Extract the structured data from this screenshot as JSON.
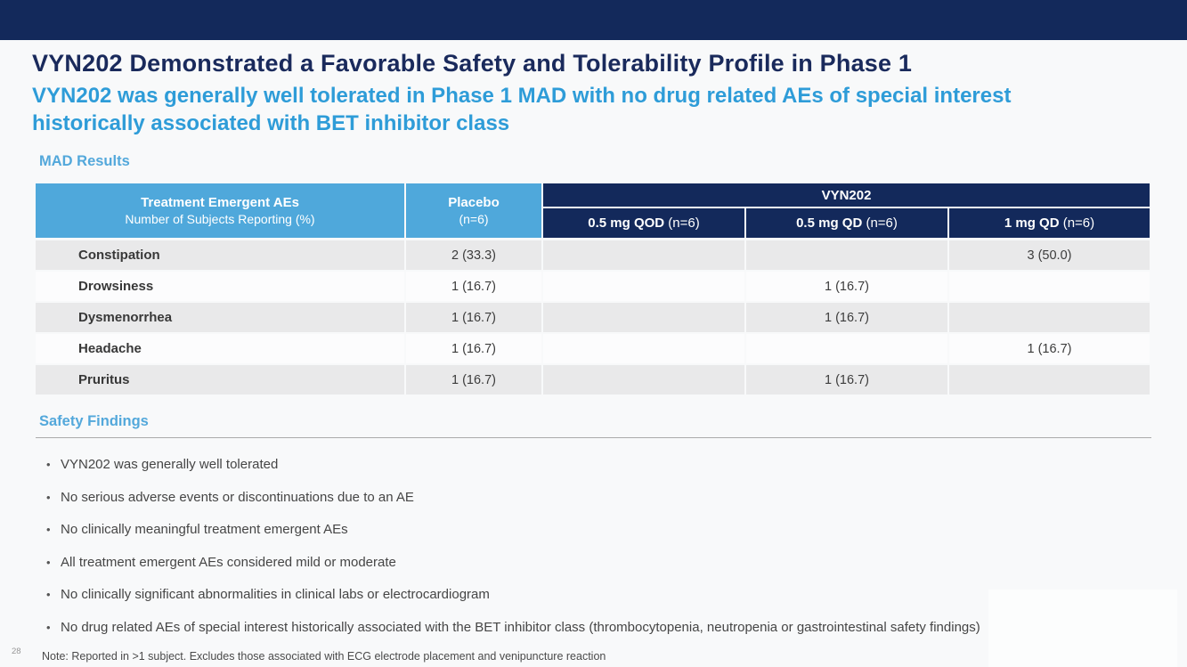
{
  "slide": {
    "title": "VYN202 Demonstrated a Favorable Safety and Tolerability Profile in Phase 1",
    "subtitle": "VYN202 was generally well tolerated in Phase 1 MAD with no drug related AEs of special interest historically associated with BET inhibitor class",
    "page_number": "28",
    "note": "Note: Reported in >1 subject. Excludes those associated with ECG electrode placement and venipuncture reaction"
  },
  "colors": {
    "navy": "#13295b",
    "light_blue": "#4fa8db",
    "title_navy": "#1a2a5c",
    "subtitle_blue": "#2e9cd8",
    "row_gray": "#e9e9ea"
  },
  "mad": {
    "section_label": "MAD Results",
    "table": {
      "header": {
        "col1_line1": "Treatment Emergent AEs",
        "col1_line2": "Number of Subjects Reporting (%)",
        "placebo_label": "Placebo",
        "placebo_n": "(n=6)",
        "group_label": "VYN202",
        "doses": [
          {
            "label": "0.5 mg QOD",
            "n": " (n=6)"
          },
          {
            "label": "0.5 mg QD",
            "n": " (n=6)"
          },
          {
            "label": "1 mg QD",
            "n": " (n=6)"
          }
        ]
      },
      "rows": [
        {
          "name": "Constipation",
          "placebo": "2 (33.3)",
          "qod": "",
          "qd": "",
          "qd1mg": "3 (50.0)"
        },
        {
          "name": "Drowsiness",
          "placebo": "1 (16.7)",
          "qod": "",
          "qd": "1 (16.7)",
          "qd1mg": ""
        },
        {
          "name": "Dysmenorrhea",
          "placebo": "1 (16.7)",
          "qod": "",
          "qd": "1 (16.7)",
          "qd1mg": ""
        },
        {
          "name": "Headache",
          "placebo": "1 (16.7)",
          "qod": "",
          "qd": "",
          "qd1mg": "1 (16.7)"
        },
        {
          "name": "Pruritus",
          "placebo": "1 (16.7)",
          "qod": "",
          "qd": "1 (16.7)",
          "qd1mg": ""
        }
      ]
    }
  },
  "safety": {
    "section_label": "Safety Findings",
    "bullet_glyph": "•",
    "bullets": [
      "VYN202 was generally well tolerated",
      "No serious adverse events or discontinuations due to an AE",
      "No clinically meaningful treatment emergent AEs",
      "All treatment emergent AEs considered mild or moderate",
      "No clinically significant abnormalities in clinical labs or electrocardiogram",
      "No drug related AEs of special interest historically associated with the BET inhibitor class (thrombocytopenia, neutropenia or gastrointestinal safety findings)"
    ]
  }
}
